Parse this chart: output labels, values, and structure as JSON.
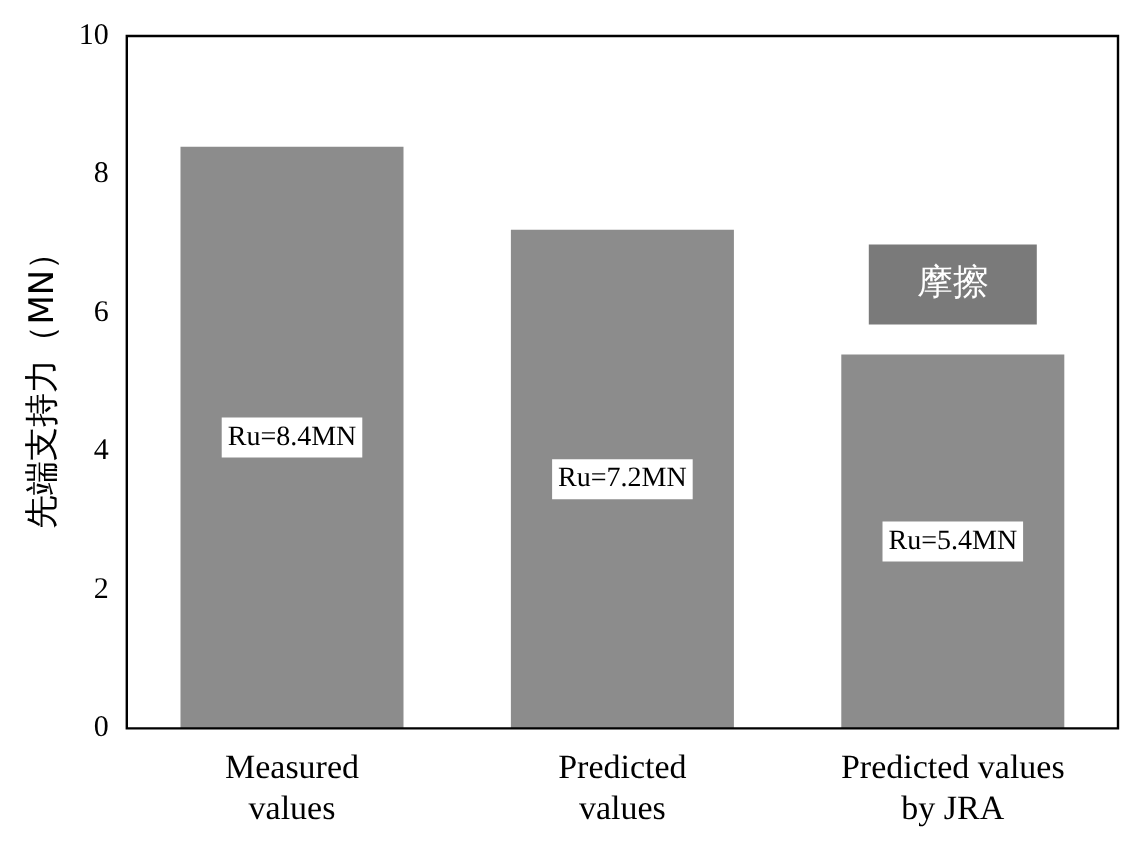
{
  "chart_data": {
    "type": "bar",
    "ylabel": "先端支持力（MN）",
    "categories": [
      "Measured\nvalues",
      "Predicted\nvalues",
      "Predicted values\nby JRA"
    ],
    "values": [
      8.4,
      7.2,
      5.4
    ],
    "value_labels": [
      "Ru=8.4MN",
      "Ru=7.2MN",
      "Ru=5.4MN"
    ],
    "color": "#8c8c8c",
    "ylim": [
      0,
      10
    ],
    "yticks": [
      0,
      2,
      4,
      6,
      8,
      10
    ],
    "grid": false,
    "legend": false,
    "annotations": [
      "摩擦"
    ]
  }
}
